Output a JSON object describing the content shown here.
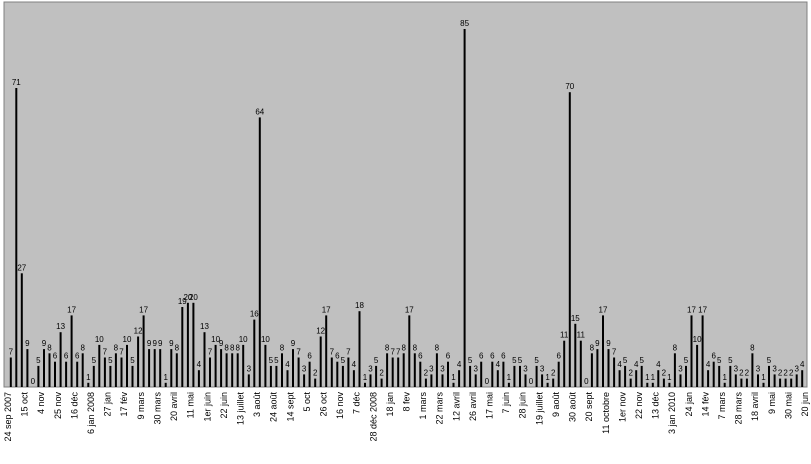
{
  "chart_data": {
    "type": "bar",
    "title": "",
    "xlabel": "",
    "ylabel": "",
    "ylim": [
      0,
      85
    ],
    "grid": false,
    "legend": "none",
    "colors": {
      "plot_bg": "#c0c0c0",
      "bar": "#000000",
      "frame": "#808080"
    },
    "values": [
      7,
      71,
      27,
      9,
      0,
      5,
      9,
      8,
      6,
      13,
      6,
      17,
      6,
      8,
      1,
      5,
      10,
      7,
      5,
      8,
      7,
      10,
      5,
      12,
      17,
      9,
      9,
      9,
      1,
      9,
      8,
      19,
      20,
      20,
      4,
      13,
      7,
      10,
      9,
      8,
      8,
      8,
      10,
      3,
      16,
      64,
      10,
      5,
      5,
      8,
      4,
      9,
      7,
      3,
      6,
      2,
      12,
      17,
      7,
      6,
      5,
      7,
      4,
      18,
      1,
      3,
      5,
      2,
      8,
      7,
      7,
      8,
      17,
      8,
      6,
      2,
      3,
      8,
      3,
      6,
      1,
      4,
      85,
      5,
      3,
      6,
      0,
      6,
      4,
      6,
      1,
      5,
      5,
      3,
      0,
      5,
      3,
      1,
      2,
      6,
      11,
      70,
      15,
      11,
      0,
      8,
      9,
      17,
      9,
      7,
      4,
      5,
      2,
      4,
      5,
      1,
      1,
      4,
      2,
      1,
      8,
      3,
      5,
      17,
      10,
      17,
      4,
      6,
      5,
      1,
      5,
      3,
      2,
      2,
      8,
      3,
      1,
      5,
      3,
      2,
      2,
      2,
      3,
      4
    ],
    "tick_labels": [
      "24 sep 2007",
      "15 oct",
      "4 nov",
      "25 nov",
      "16 déc",
      "6 jan 2008",
      "27 jan",
      "17 fév",
      "9 mars",
      "30 mars",
      "20 avril",
      "11 mai",
      "1er juin",
      "22 juin",
      "13 juillet",
      "3 août",
      "24 août",
      "14 sept",
      "5 oct",
      "26 oct",
      "16 nov",
      "7 déc",
      "28 déc 2008",
      "18 jan",
      "8 fev",
      "1 mars",
      "22 mars",
      "12 avril",
      "26 avril",
      "17 mai",
      "7 juin",
      "28 juin",
      "19 juillet",
      "9 août",
      "30 août",
      "20 sept",
      "11 octobre",
      "1er nov",
      "22 nov",
      "13 déc",
      "3 jan 2010",
      "24 jan",
      "14 fév",
      "7 mars",
      "28 mars",
      "18 avril",
      "9 mai",
      "30 mai",
      "20 jun"
    ]
  }
}
